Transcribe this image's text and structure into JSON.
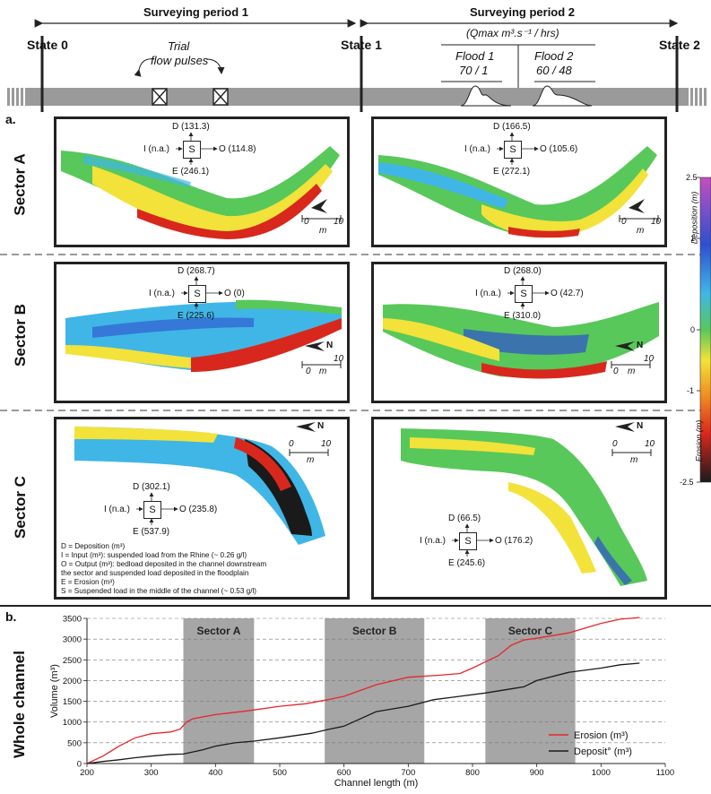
{
  "header": {
    "period1": "Surveying period 1",
    "period2": "Surveying period 2",
    "state0": "State 0",
    "state1": "State 1",
    "state2": "State 2",
    "qmax": "(Qmax m³.s⁻¹ / hrs)",
    "flood1_name": "Flood 1",
    "flood1_val": "70 / 1",
    "flood2_name": "Flood 2",
    "flood2_val": "60 / 48",
    "trial": "Trial",
    "trial2": "flow pulses"
  },
  "panel_a_label": "a.",
  "panel_b_label": "b.",
  "sectors": {
    "A": "Sector A",
    "B": "Sector B",
    "C": "Sector C",
    "whole": "Whole channel"
  },
  "budgets": {
    "a1": {
      "D": "D (131.3)",
      "I": "I (n.a.)",
      "O": "O (114.8)",
      "E": "E (246.1)",
      "S": "S"
    },
    "a2": {
      "D": "D (166.5)",
      "I": "I (n.a.)",
      "O": "O (105.6)",
      "E": "E (272.1)",
      "S": "S"
    },
    "b1": {
      "D": "D (268.7)",
      "I": "I (n.a.)",
      "O": "O (0)",
      "E": "E (225.6)",
      "S": "S"
    },
    "b2": {
      "D": "D (268.0)",
      "I": "I (n.a.)",
      "O": "O (42.7)",
      "E": "E (310.0)",
      "S": "S"
    },
    "c1": {
      "D": "D (302.1)",
      "I": "I (n.a.)",
      "O": "O (235.8)",
      "E": "E (537.9)",
      "S": "S"
    },
    "c2": {
      "D": "D (66.5)",
      "I": "I (n.a.)",
      "O": "O (176.2)",
      "E": "E (245.6)",
      "S": "S"
    }
  },
  "scale": {
    "zero": "0",
    "ten": "10",
    "unit": "m",
    "north": "N"
  },
  "legend_lines": [
    "D = Deposition (m³)",
    "I = Input (m³): suspended load from the Rhine (~ 0.26 g/l)",
    "O = Output (m³): bedload deposited in the channel downstream",
    "the sector and suspended load deposited in the floodplain",
    "E = Erosion (m³)",
    "S = Suspended load in the middle of the channel (~ 0.53 g/l)"
  ],
  "colorbar": {
    "ticks": [
      "2.5",
      "1",
      "0",
      "-1",
      "-2.5"
    ],
    "deposition_label": "Deposition (m)",
    "erosion_label": "Erosion (m)",
    "colors": [
      "#c24fbf",
      "#2f4fcf",
      "#3fb6e6",
      "#58c85a",
      "#f2e23a",
      "#f08a22",
      "#d8281d",
      "#1a1a1a"
    ]
  },
  "chart_data": {
    "type": "line",
    "xlabel": "Channel length (m)",
    "ylabel": "Volume (m³)",
    "xlim": [
      200,
      1100
    ],
    "ylim": [
      0,
      3500
    ],
    "xticks": [
      200,
      300,
      400,
      500,
      600,
      700,
      800,
      900,
      1000,
      1100
    ],
    "yticks": [
      0,
      500,
      1000,
      1500,
      2000,
      2500,
      3000,
      3500
    ],
    "grid": "horizontal-dashed",
    "legend_position": "bottom-right",
    "shaded_regions": [
      {
        "label": "Sector A",
        "x0": 350,
        "x1": 460
      },
      {
        "label": "Sector B",
        "x0": 570,
        "x1": 725
      },
      {
        "label": "Sector C",
        "x0": 820,
        "x1": 960
      }
    ],
    "series": [
      {
        "name": "Erosion (m³)",
        "color": "#e8262a",
        "x": [
          200,
          225,
          250,
          275,
          300,
          330,
          345,
          355,
          365,
          400,
          450,
          500,
          540,
          575,
          600,
          650,
          700,
          750,
          780,
          800,
          820,
          840,
          860,
          880,
          900,
          950,
          1000,
          1030,
          1060
        ],
        "y": [
          0,
          180,
          420,
          620,
          720,
          760,
          830,
          1000,
          1080,
          1180,
          1270,
          1380,
          1440,
          1540,
          1620,
          1900,
          2080,
          2130,
          2170,
          2300,
          2450,
          2600,
          2850,
          2980,
          3020,
          3150,
          3380,
          3480,
          3520
        ]
      },
      {
        "name": "Deposit° (m³)",
        "color": "#1a1a1a",
        "x": [
          200,
          225,
          250,
          275,
          300,
          330,
          350,
          380,
          400,
          430,
          460,
          500,
          550,
          575,
          600,
          650,
          700,
          740,
          780,
          820,
          860,
          880,
          900,
          950,
          1000,
          1030,
          1060
        ],
        "y": [
          0,
          50,
          90,
          140,
          180,
          220,
          230,
          330,
          420,
          500,
          540,
          620,
          730,
          820,
          900,
          1250,
          1380,
          1540,
          1620,
          1700,
          1800,
          1850,
          2000,
          2200,
          2300,
          2380,
          2420
        ]
      }
    ]
  }
}
